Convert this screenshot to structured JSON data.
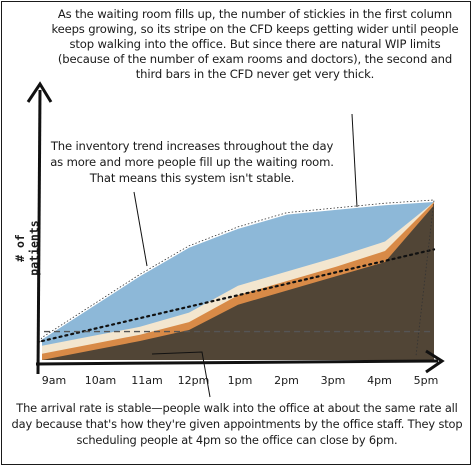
{
  "annotations": {
    "top": "As the waiting room fills up, the number of stickies in the first column keeps growing, so its stripe on the CFD keeps getting wider until people stop walking into the office. But since there are natural WIP limits (because of the number of exam rooms and doctors), the second and third bars in the CFD never get very thick.",
    "middle": "The inventory trend increases throughout the day as more and more people fill up the waiting room. That means this system isn't stable.",
    "bottom": "The arrival rate is stable—people walk into the office at about the same rate all day because that's how they're given appointments by the office staff. They stop scheduling people at 4pm so the office can close by 6pm."
  },
  "axis": {
    "y_label": "# of patients",
    "x_ticks": [
      "9am",
      "10am",
      "11am",
      "12pm",
      "1pm",
      "2pm",
      "3pm",
      "4pm",
      "5pm"
    ]
  },
  "colors": {
    "waiting": "#8db8d8",
    "orange": "#d88a47",
    "cream": "#f3e6cf",
    "done": "#514536",
    "trend": "#111111"
  },
  "chart_data": {
    "type": "area",
    "title": "",
    "xlabel": "",
    "ylabel": "# of patients",
    "x": [
      "9am",
      "10am",
      "11am",
      "12pm",
      "1pm",
      "2pm",
      "3pm",
      "4pm",
      "5pm"
    ],
    "ylim": [
      0,
      100
    ],
    "grid": false,
    "series": [
      {
        "values": [
          0,
          6,
          12,
          19,
          35,
          44,
          53,
          62,
          98
        ]
      },
      {
        "values": [
          4,
          10,
          16,
          24,
          41,
          50,
          59,
          69,
          100
        ]
      },
      {
        "values": [
          9,
          15,
          21,
          30,
          47,
          56,
          65,
          75,
          100
        ]
      },
      {
        "values": [
          13,
          33,
          53,
          71,
          83,
          92,
          95,
          98,
          100
        ]
      }
    ],
    "trend_line": [
      12,
      70
    ],
    "reference_level": 18
  }
}
